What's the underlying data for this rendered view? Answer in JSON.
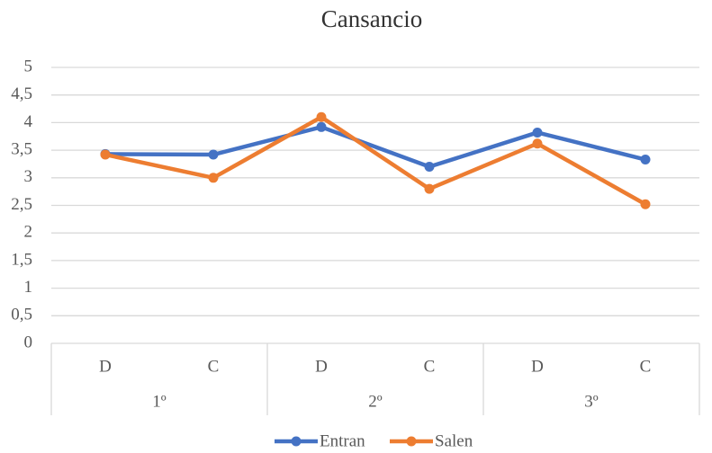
{
  "chart_data": {
    "type": "line",
    "title": "Cansancio",
    "categories": [
      "D",
      "C",
      "D",
      "C",
      "D",
      "C"
    ],
    "groups": [
      "1º",
      "2º",
      "3º"
    ],
    "series": [
      {
        "name": "Entran",
        "color": "#4472c4",
        "values": [
          3.43,
          3.42,
          3.92,
          3.2,
          3.82,
          3.33
        ]
      },
      {
        "name": "Salen",
        "color": "#ed7d31",
        "values": [
          3.42,
          3.0,
          4.1,
          2.8,
          3.62,
          2.52
        ]
      }
    ],
    "ylim": [
      0,
      5
    ],
    "yticks": [
      0,
      {
        "value": 0.5,
        "label": "0,5"
      },
      1,
      {
        "value": 1.5,
        "label": "1,5"
      },
      2,
      {
        "value": 2.5,
        "label": "2,5"
      },
      3,
      {
        "value": 3.5,
        "label": "3,5"
      },
      4,
      {
        "value": 4.5,
        "label": "4,5"
      },
      5
    ],
    "grid": true,
    "legend": "bottom"
  }
}
